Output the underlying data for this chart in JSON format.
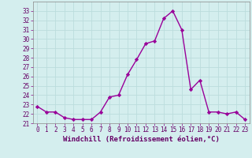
{
  "x": [
    0,
    1,
    2,
    3,
    4,
    5,
    6,
    7,
    8,
    9,
    10,
    11,
    12,
    13,
    14,
    15,
    16,
    17,
    18,
    19,
    20,
    21,
    22,
    23
  ],
  "y": [
    22.8,
    22.2,
    22.2,
    21.6,
    21.4,
    21.4,
    21.4,
    22.2,
    23.8,
    24.0,
    26.2,
    27.8,
    29.5,
    29.8,
    32.2,
    33.0,
    31.0,
    24.6,
    25.6,
    22.2,
    22.2,
    22.0,
    22.2,
    21.4
  ],
  "line_color": "#990099",
  "marker": "D",
  "marker_size": 2.2,
  "bg_color": "#d4eeee",
  "grid_color": "#bbdddd",
  "xlabel": "Windchill (Refroidissement éolien,°C)",
  "xlabel_fontsize": 6.5,
  "ylim": [
    21,
    34
  ],
  "xlim": [
    -0.5,
    23.5
  ],
  "yticks": [
    21,
    22,
    23,
    24,
    25,
    26,
    27,
    28,
    29,
    30,
    31,
    32,
    33
  ],
  "xticks": [
    0,
    1,
    2,
    3,
    4,
    5,
    6,
    7,
    8,
    9,
    10,
    11,
    12,
    13,
    14,
    15,
    16,
    17,
    18,
    19,
    20,
    21,
    22,
    23
  ],
  "tick_fontsize": 5.5,
  "line_width": 1.0,
  "tick_color": "#880088",
  "label_color": "#660066"
}
